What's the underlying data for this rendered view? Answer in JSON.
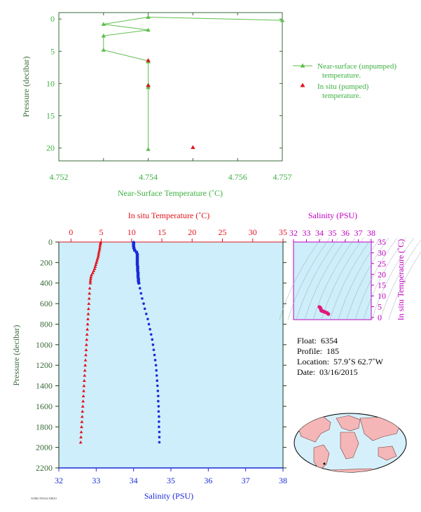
{
  "top_chart": {
    "xlabel": "Near-Surface Temperature (˚C)",
    "ylabel": "Pressure (decibar)",
    "x_ticks": [
      "4.752",
      "4.754",
      "4.756",
      "4.757"
    ],
    "legend": {
      "unpumped": [
        "Near-surface (unpumped)",
        "temperature."
      ],
      "pumped": [
        "In situ (pumped)",
        "temperature."
      ]
    }
  },
  "main_chart": {
    "top_xlabel": "In situ Temperature (˚C)",
    "bottom_xlabel": "Salinity (PSU)",
    "ylabel": "Pressure (decibar)"
  },
  "ts_chart": {
    "xlabel": "Salinity (PSU)",
    "ylabel": "In situ Temperature (˚C)"
  },
  "info": {
    "float_label": "Float:",
    "float_value": "6354",
    "profile_label": "Profile:",
    "profile_value": "185",
    "location_label": "Location:",
    "location_value": "57.9˚S  62.7˚W",
    "date_label": "Date:",
    "date_value": "03/16/2015"
  },
  "footer": {
    "code": "AOML/NOAA/ARGO"
  },
  "colors": {
    "green_axis": "#3a6b3a",
    "green_series": "#5cbf4a",
    "pumped": "#e0141e",
    "temperature": "#e0141e",
    "salinity": "#1a2ad8",
    "ts_axis": "#c000c0",
    "ts_points": "#e0197d",
    "panel_bg": "#cdeefa"
  },
  "chart_data": [
    {
      "type": "line",
      "name": "near-surface-temperature",
      "xlim": [
        4.752,
        4.757
      ],
      "ylim": [
        22,
        -1
      ],
      "x_ticks": [
        4.752,
        4.753,
        4.754,
        4.755,
        4.756,
        4.757
      ],
      "x_tick_labels": [
        "4.752",
        "",
        "4.754",
        "",
        "4.756",
        "4.757"
      ],
      "y_ticks": [
        0,
        5,
        10,
        15,
        20
      ],
      "series": [
        {
          "name": "Near-surface (unpumped) temperature.",
          "x": [
            4.757,
            4.754,
            4.753,
            4.754,
            4.753,
            4.753,
            4.754,
            4.754,
            4.754,
            4.754,
            4.754
          ],
          "y": [
            0.2,
            -0.3,
            0.8,
            1.7,
            2.6,
            4.8,
            6.5,
            6.6,
            10.2,
            10.6,
            20.2
          ]
        },
        {
          "name": "In situ (pumped) temperature.",
          "x": [
            4.754,
            4.754,
            4.755
          ],
          "y": [
            6.4,
            10.3,
            19.9
          ]
        }
      ]
    },
    {
      "type": "scatter",
      "name": "temperature-salinity-profile",
      "ylim": [
        2200,
        0
      ],
      "y_ticks": [
        0,
        200,
        400,
        600,
        800,
        1000,
        1200,
        1400,
        1600,
        1800,
        2000,
        2200
      ],
      "temperature_axis": {
        "lim": [
          -2,
          35
        ],
        "ticks": [
          0,
          5,
          10,
          15,
          20,
          25,
          30,
          35
        ]
      },
      "salinity_axis": {
        "lim": [
          32,
          38
        ],
        "ticks": [
          32,
          33,
          34,
          35,
          36,
          37,
          38
        ]
      },
      "series": [
        {
          "name": "In situ Temperature",
          "pressure": [
            5,
            20,
            40,
            60,
            80,
            100,
            120,
            140,
            160,
            180,
            200,
            220,
            240,
            260,
            280,
            300,
            320,
            340,
            360,
            380,
            400,
            450,
            500,
            550,
            600,
            650,
            700,
            750,
            800,
            850,
            900,
            950,
            1000,
            1050,
            1100,
            1150,
            1200,
            1250,
            1300,
            1350,
            1400,
            1450,
            1500,
            1550,
            1600,
            1650,
            1700,
            1750,
            1800,
            1850,
            1900,
            1950
          ],
          "values": [
            4.9,
            4.85,
            4.8,
            4.75,
            4.7,
            4.6,
            4.55,
            4.5,
            4.4,
            4.3,
            4.2,
            4.1,
            4.0,
            3.9,
            3.75,
            3.6,
            3.4,
            3.3,
            3.25,
            3.2,
            3.2,
            3.1,
            3.05,
            3.0,
            2.95,
            2.9,
            2.85,
            2.8,
            2.75,
            2.7,
            2.65,
            2.6,
            2.55,
            2.5,
            2.45,
            2.4,
            2.35,
            2.3,
            2.25,
            2.2,
            2.15,
            2.1,
            2.05,
            2.0,
            1.95,
            1.9,
            1.85,
            1.8,
            1.75,
            1.7,
            1.65,
            1.6
          ]
        },
        {
          "name": "Salinity",
          "pressure": [
            5,
            20,
            40,
            60,
            80,
            100,
            120,
            140,
            160,
            180,
            200,
            220,
            240,
            260,
            280,
            300,
            320,
            340,
            360,
            380,
            400,
            450,
            500,
            550,
            600,
            650,
            700,
            750,
            800,
            850,
            900,
            950,
            1000,
            1050,
            1100,
            1150,
            1200,
            1250,
            1300,
            1350,
            1400,
            1450,
            1500,
            1550,
            1600,
            1650,
            1700,
            1750,
            1800,
            1850,
            1900,
            1950
          ],
          "values": [
            34.0,
            34.0,
            34.0,
            34.01,
            34.03,
            34.08,
            34.1,
            34.1,
            34.1,
            34.1,
            34.1,
            34.1,
            34.11,
            34.11,
            34.11,
            34.12,
            34.12,
            34.12,
            34.13,
            34.13,
            34.14,
            34.17,
            34.2,
            34.23,
            34.27,
            34.3,
            34.34,
            34.38,
            34.41,
            34.44,
            34.47,
            34.5,
            34.52,
            34.54,
            34.56,
            34.58,
            34.6,
            34.61,
            34.62,
            34.63,
            34.64,
            34.65,
            34.66,
            34.66,
            34.67,
            34.67,
            34.68,
            34.68,
            34.68,
            34.69,
            34.69,
            34.69
          ]
        }
      ]
    },
    {
      "type": "scatter",
      "name": "ts-diagram",
      "xlim": [
        32,
        38
      ],
      "ylim": [
        -1,
        35
      ],
      "x_ticks": [
        32,
        33,
        34,
        35,
        36,
        37,
        38
      ],
      "y_ticks": [
        0,
        5,
        10,
        15,
        20,
        25,
        30,
        35
      ],
      "series": [
        {
          "name": "T-S",
          "salinity": [
            34.0,
            34.05,
            34.1,
            34.12,
            34.14,
            34.2,
            34.3,
            34.4,
            34.5,
            34.6,
            34.69
          ],
          "temperature": [
            4.9,
            4.6,
            4.2,
            3.6,
            3.2,
            3.0,
            2.85,
            2.6,
            2.35,
            2.1,
            1.6
          ]
        }
      ]
    }
  ]
}
